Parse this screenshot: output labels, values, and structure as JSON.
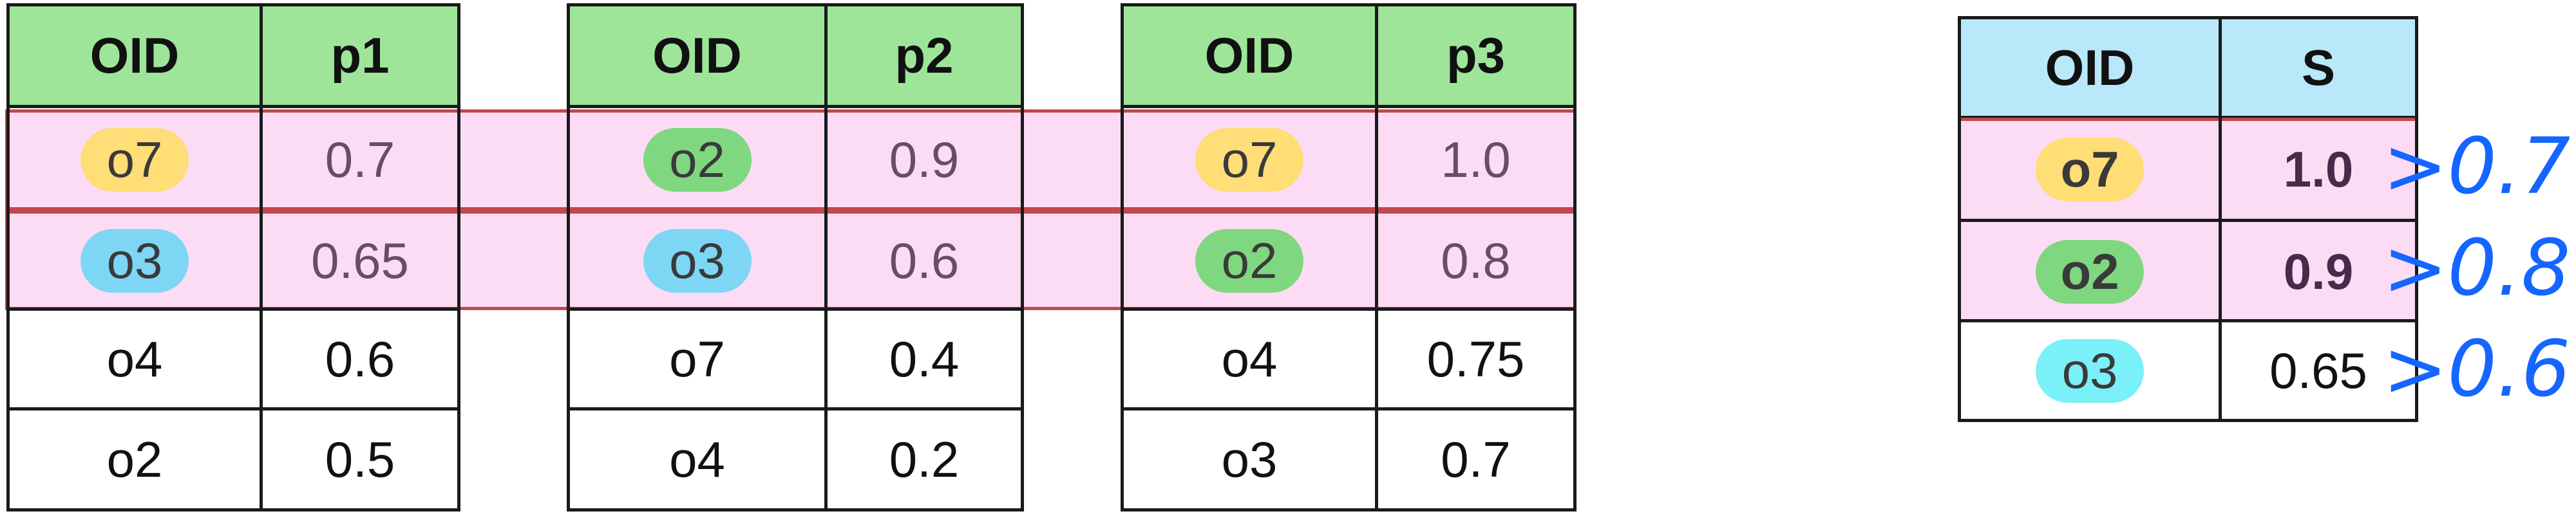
{
  "colors": {
    "header_green": "#9ee59a",
    "header_blue": "#b8e8fa",
    "highlight_pink": "#fcdcf5",
    "band_border": "#c2474f",
    "pill_yellow": "#ffdd77",
    "pill_green": "#7fd77f",
    "pill_blue": "#7dd6f4",
    "pill_cyan": "#7af0f8",
    "ink_blue": "#1565ff"
  },
  "tables": [
    {
      "headers": [
        "OID",
        "p1"
      ],
      "rows": [
        {
          "oid": "o7",
          "value": "0.7",
          "pill": "yellow"
        },
        {
          "oid": "o3",
          "value": "0.65",
          "pill": "blue"
        },
        {
          "oid": "o4",
          "value": "0.6"
        },
        {
          "oid": "o2",
          "value": "0.5"
        }
      ]
    },
    {
      "headers": [
        "OID",
        "p2"
      ],
      "rows": [
        {
          "oid": "o2",
          "value": "0.9",
          "pill": "green"
        },
        {
          "oid": "o3",
          "value": "0.6",
          "pill": "blue"
        },
        {
          "oid": "o7",
          "value": "0.4"
        },
        {
          "oid": "o4",
          "value": "0.2"
        }
      ]
    },
    {
      "headers": [
        "OID",
        "p3"
      ],
      "rows": [
        {
          "oid": "o7",
          "value": "1.0",
          "pill": "yellow"
        },
        {
          "oid": "o2",
          "value": "0.8",
          "pill": "green"
        },
        {
          "oid": "o4",
          "value": "0.75"
        },
        {
          "oid": "o3",
          "value": "0.7"
        }
      ]
    }
  ],
  "result_table": {
    "headers": [
      "OID",
      "S"
    ],
    "rows": [
      {
        "oid": "o7",
        "value": "1.0",
        "pill": "yellow",
        "annotation": ">0.7"
      },
      {
        "oid": "o2",
        "value": "0.9",
        "pill": "green",
        "annotation": ">0.8"
      },
      {
        "oid": "o3",
        "value": "0.65",
        "pill": "cyan",
        "annotation": ">0.6"
      }
    ]
  }
}
